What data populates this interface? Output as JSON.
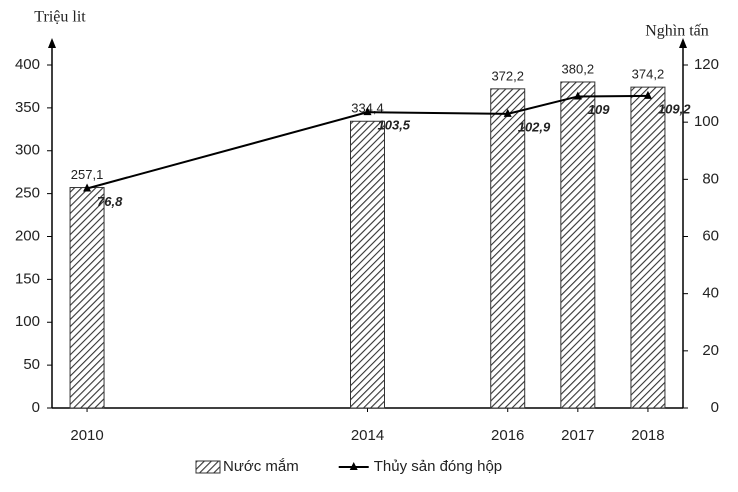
{
  "chart_data": {
    "type": "combo",
    "y_label": "Triệu lit",
    "y2_label": "Nghìn tấn",
    "x": [
      2010,
      2014,
      2016,
      2017,
      2018
    ],
    "xlim": [
      2009.5,
      2018.5
    ],
    "xticks": [
      2010,
      2014,
      2016,
      2017,
      2018
    ],
    "ylim": [
      0,
      400
    ],
    "yticks": [
      0,
      50,
      100,
      150,
      200,
      250,
      300,
      350,
      400
    ],
    "y2lim": [
      0,
      120
    ],
    "y2ticks": [
      0,
      20,
      40,
      60,
      80,
      100,
      120
    ],
    "series": [
      {
        "name": "Nước mắm",
        "type": "bar",
        "color": "#333333",
        "values": [
          257.1,
          334.4,
          372.2,
          380.2,
          374.2
        ],
        "value_labels": [
          "257,1",
          "334,4",
          "372,2",
          "380,2",
          "374,2"
        ]
      },
      {
        "name": "Thủy sản đóng hộp",
        "type": "line",
        "axis": "y2",
        "color": "#000000",
        "values": [
          76.8,
          103.5,
          102.9,
          109,
          109.2
        ],
        "value_labels": [
          "76,8",
          "103,5",
          "102,9",
          "109",
          "109,2"
        ]
      }
    ]
  }
}
